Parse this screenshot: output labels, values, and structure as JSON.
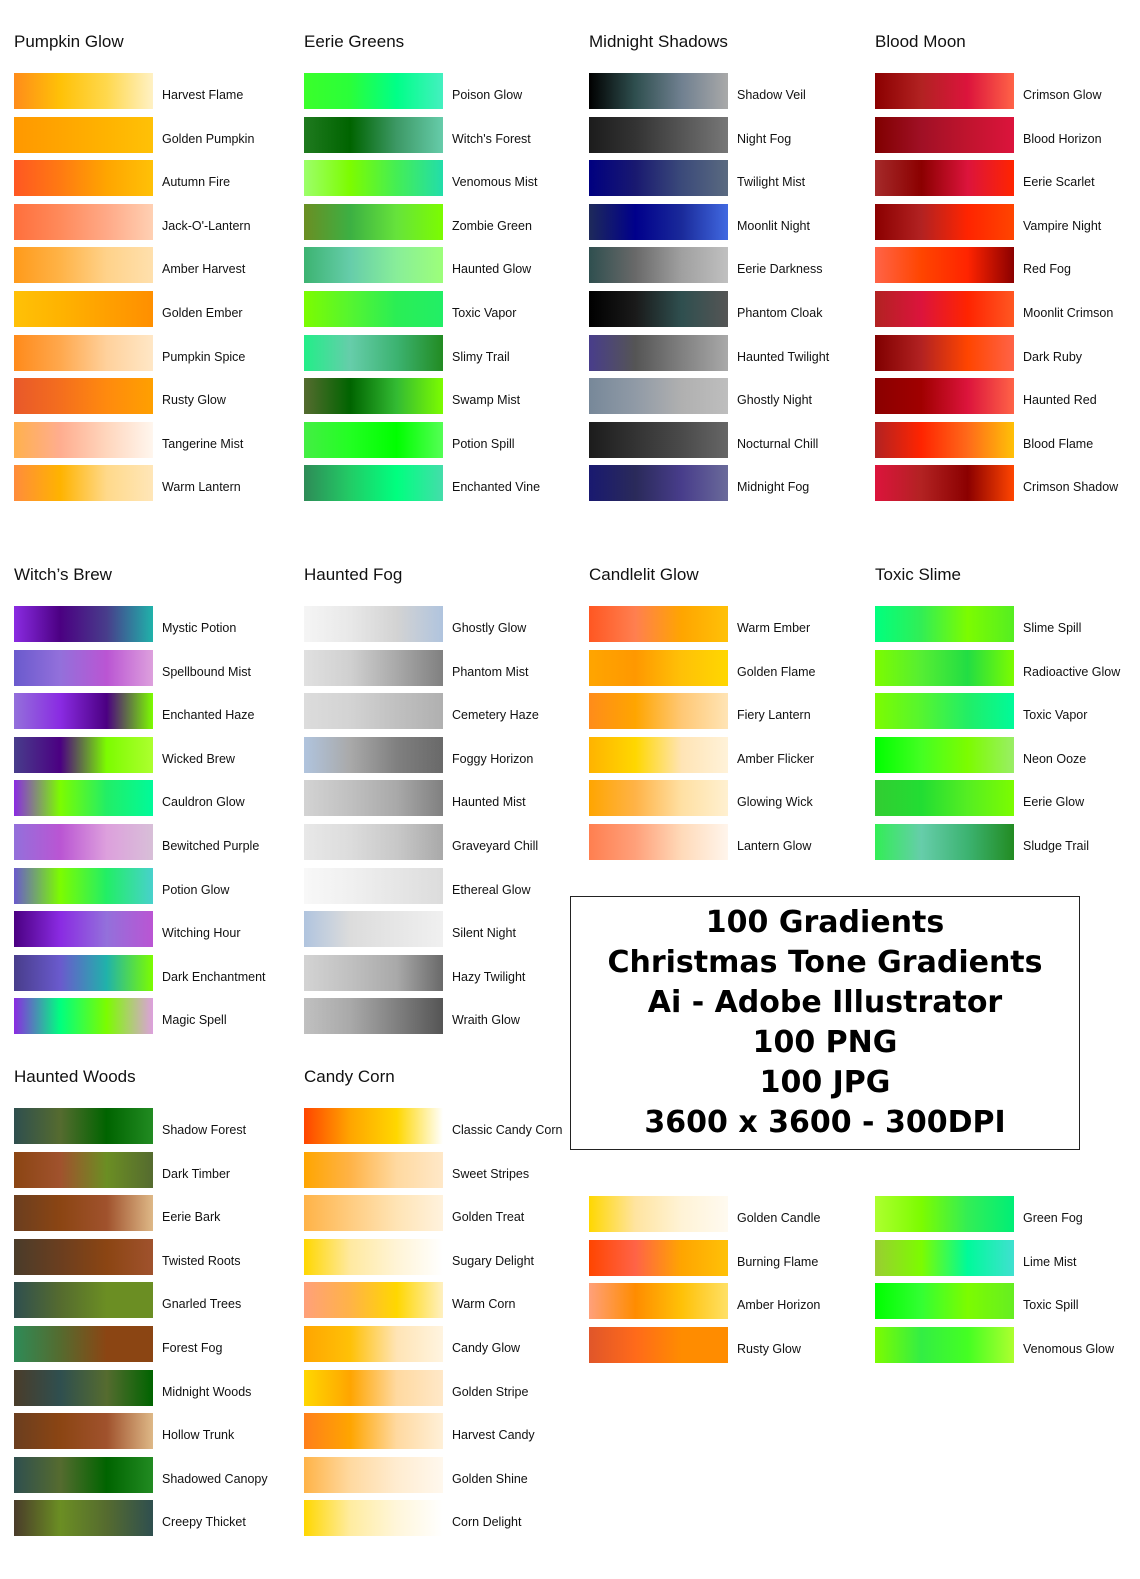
{
  "groups": [
    {
      "title": "Pumpkin Glow",
      "items": [
        {
          "label": "Harvest Flame",
          "colors": [
            "#ff8c1a",
            "#ffc107",
            "#ffd84d",
            "#fff1c4"
          ]
        },
        {
          "label": "Golden Pumpkin",
          "colors": [
            "#ff9800",
            "#ffa500",
            "#ffb300",
            "#ffc107"
          ]
        },
        {
          "label": "Autumn Fire",
          "colors": [
            "#ff5722",
            "#ff7a12",
            "#ffa500",
            "#ffc107"
          ]
        },
        {
          "label": "Jack-O'-Lantern",
          "colors": [
            "#ff6f3c",
            "#ff8a5b",
            "#ffa987",
            "#ffd0b3"
          ]
        },
        {
          "label": "Amber Harvest",
          "colors": [
            "#ff9a1a",
            "#ffb347",
            "#ffd28a",
            "#ffe0ad"
          ]
        },
        {
          "label": "Golden Ember",
          "colors": [
            "#ffc107",
            "#ffb300",
            "#ffa000",
            "#ff8f00"
          ]
        },
        {
          "label": "Pumpkin Spice",
          "colors": [
            "#ff8a1a",
            "#ffa84d",
            "#ffd19c",
            "#ffe7c6"
          ]
        },
        {
          "label": "Rusty Glow",
          "colors": [
            "#e8582a",
            "#f46e1e",
            "#ff8a0e",
            "#ffa000"
          ]
        },
        {
          "label": "Tangerine Mist",
          "colors": [
            "#ffb04d",
            "#ffad8f",
            "#ffd6bd",
            "#fff6ee"
          ]
        },
        {
          "label": "Warm Lantern",
          "colors": [
            "#ff8c3c",
            "#ffb300",
            "#ffd98a",
            "#ffe6b8"
          ]
        }
      ]
    },
    {
      "title": "Eerie Greens",
      "items": [
        {
          "label": "Poison Glow",
          "colors": [
            "#3aff2a",
            "#2aff3a",
            "#00ff88",
            "#44f0c0"
          ]
        },
        {
          "label": "Witch's Forest",
          "colors": [
            "#1f7a1f",
            "#006400",
            "#3d9966",
            "#66ccaa"
          ]
        },
        {
          "label": "Venomous Mist",
          "colors": [
            "#9dff6a",
            "#7cfc00",
            "#44ee55",
            "#22ddaa"
          ]
        },
        {
          "label": "Zombie Green",
          "colors": [
            "#6b8e23",
            "#3cb043",
            "#66e33b",
            "#7cfc00"
          ]
        },
        {
          "label": "Haunted Glow",
          "colors": [
            "#3cb371",
            "#66cdaa",
            "#88ee99",
            "#9dff7a"
          ]
        },
        {
          "label": "Toxic Vapor",
          "colors": [
            "#7cfc00",
            "#55f530",
            "#2aee55",
            "#22ee66"
          ]
        },
        {
          "label": "Slimy Trail",
          "colors": [
            "#22ee88",
            "#66cdaa",
            "#3cb371",
            "#228b22"
          ]
        },
        {
          "label": "Swamp Mist",
          "colors": [
            "#556b2f",
            "#006400",
            "#33bb33",
            "#7cfc00"
          ]
        },
        {
          "label": "Potion Spill",
          "colors": [
            "#44ee44",
            "#22ff22",
            "#00ff00",
            "#55ff55"
          ]
        },
        {
          "label": "Enchanted Vine",
          "colors": [
            "#2e8b57",
            "#22cc66",
            "#00ff7f",
            "#44ddaa"
          ]
        }
      ]
    },
    {
      "title": "Midnight Shadows",
      "items": [
        {
          "label": "Shadow Veil",
          "colors": [
            "#000000",
            "#2f4f4f",
            "#708090",
            "#a9a9a9"
          ]
        },
        {
          "label": "Night Fog",
          "colors": [
            "#1c1c1c",
            "#333333",
            "#555555",
            "#777777"
          ]
        },
        {
          "label": "Twilight Mist",
          "colors": [
            "#000080",
            "#191970",
            "#3b4a7a",
            "#5a6a80"
          ]
        },
        {
          "label": "Moonlit Night",
          "colors": [
            "#1e2a5a",
            "#00008b",
            "#1a2a9a",
            "#4169e1"
          ]
        },
        {
          "label": "Eerie Darkness",
          "colors": [
            "#2f4f4f",
            "#696969",
            "#a0a0a0",
            "#c0c0c0"
          ]
        },
        {
          "label": "Phantom Cloak",
          "colors": [
            "#000000",
            "#1a1a1a",
            "#2f4f4f",
            "#555555"
          ]
        },
        {
          "label": "Haunted Twilight",
          "colors": [
            "#483d8b",
            "#555555",
            "#808080",
            "#a9a9a9"
          ]
        },
        {
          "label": "Ghostly Night",
          "colors": [
            "#778899",
            "#909aa6",
            "#b0b0b0",
            "#bebebe"
          ]
        },
        {
          "label": "Nocturnal Chill",
          "colors": [
            "#1c1c1c",
            "#333333",
            "#4a4a4a",
            "#666666"
          ]
        },
        {
          "label": "Midnight Fog",
          "colors": [
            "#191970",
            "#2a2a5a",
            "#483d8b",
            "#6a6a9a"
          ]
        }
      ]
    },
    {
      "title": "Blood Moon",
      "items": [
        {
          "label": "Crimson Glow",
          "colors": [
            "#8b0000",
            "#b22222",
            "#dc143c",
            "#ff6347"
          ]
        },
        {
          "label": "Blood Horizon",
          "colors": [
            "#800000",
            "#a01025",
            "#c0142e",
            "#dc143c"
          ]
        },
        {
          "label": "Eerie Scarlet",
          "colors": [
            "#a52a2a",
            "#8b0000",
            "#dc143c",
            "#ff2400"
          ]
        },
        {
          "label": "Vampire Night",
          "colors": [
            "#8b0000",
            "#b22222",
            "#ff2400",
            "#ff4500"
          ]
        },
        {
          "label": "Red Fog",
          "colors": [
            "#ff6347",
            "#ff4500",
            "#ff2400",
            "#8b0000"
          ]
        },
        {
          "label": "Moonlit Crimson",
          "colors": [
            "#b22222",
            "#dc143c",
            "#ff2400",
            "#ff5722"
          ]
        },
        {
          "label": "Dark Ruby",
          "colors": [
            "#800000",
            "#b22222",
            "#ff4500",
            "#ff6347"
          ]
        },
        {
          "label": "Haunted Red",
          "colors": [
            "#8b0000",
            "#a00000",
            "#dc143c",
            "#ff6347"
          ]
        },
        {
          "label": "Blood Flame",
          "colors": [
            "#b22222",
            "#ff2400",
            "#ff6a1a",
            "#ffc107"
          ]
        },
        {
          "label": "Crimson Shadow",
          "colors": [
            "#dc143c",
            "#b22222",
            "#8b0000",
            "#ff4500"
          ]
        }
      ]
    },
    {
      "title": "Witch’s Brew",
      "items": [
        {
          "label": "Mystic Potion",
          "colors": [
            "#8a2be2",
            "#4b0082",
            "#483d8b",
            "#20b2aa"
          ]
        },
        {
          "label": "Spellbound Mist",
          "colors": [
            "#6a5acd",
            "#9370db",
            "#ba55d3",
            "#dda0dd"
          ]
        },
        {
          "label": "Enchanted Haze",
          "colors": [
            "#9370db",
            "#8a2be2",
            "#4b0082",
            "#7cfc00"
          ]
        },
        {
          "label": "Wicked Brew",
          "colors": [
            "#483d8b",
            "#4b0082",
            "#7cfc00",
            "#adff2f"
          ]
        },
        {
          "label": "Cauldron Glow",
          "colors": [
            "#8a2be2",
            "#7cfc00",
            "#22ee66",
            "#00fa9a"
          ]
        },
        {
          "label": "Bewitched Purple",
          "colors": [
            "#9370db",
            "#ba55d3",
            "#dda0dd",
            "#d8bfd8"
          ]
        },
        {
          "label": "Potion Glow",
          "colors": [
            "#6a5acd",
            "#7cfc00",
            "#22ee66",
            "#48d1cc"
          ]
        },
        {
          "label": "Witching Hour",
          "colors": [
            "#4b0082",
            "#8a2be2",
            "#9370db",
            "#ba55d3"
          ]
        },
        {
          "label": "Dark Enchantment",
          "colors": [
            "#483d8b",
            "#6a5acd",
            "#20b2aa",
            "#7cfc00"
          ]
        },
        {
          "label": "Magic Spell",
          "colors": [
            "#8a2be2",
            "#00ff7f",
            "#7cfc00",
            "#dda0dd"
          ]
        }
      ]
    },
    {
      "title": "Haunted Fog",
      "items": [
        {
          "label": "Ghostly Glow",
          "colors": [
            "#f5f5f5",
            "#e8e8e8",
            "#d3d3d3",
            "#b0c4de"
          ]
        },
        {
          "label": "Phantom Mist",
          "colors": [
            "#e0e0e0",
            "#d0d0d0",
            "#a9a9a9",
            "#808080"
          ]
        },
        {
          "label": "Cemetery Haze",
          "colors": [
            "#dcdcdc",
            "#d3d3d3",
            "#c0c0c0",
            "#b0b0b0"
          ]
        },
        {
          "label": "Foggy Horizon",
          "colors": [
            "#b0c4de",
            "#a9a9a9",
            "#808080",
            "#696969"
          ]
        },
        {
          "label": "Haunted Mist",
          "colors": [
            "#d3d3d3",
            "#c0c0c0",
            "#a9a9a9",
            "#808080"
          ]
        },
        {
          "label": "Graveyard Chill",
          "colors": [
            "#e8e8e8",
            "#dcdcdc",
            "#c8c8c8",
            "#a9a9a9"
          ]
        },
        {
          "label": "Ethereal Glow",
          "colors": [
            "#f8f8f8",
            "#f0f0f0",
            "#e6e6e6",
            "#dcdcdc"
          ]
        },
        {
          "label": "Silent Night",
          "colors": [
            "#b0c4de",
            "#dcdcdc",
            "#e6e6e6",
            "#f0f0f0"
          ]
        },
        {
          "label": "Hazy Twilight",
          "colors": [
            "#d3d3d3",
            "#c0c0c0",
            "#a9a9a9",
            "#696969"
          ]
        },
        {
          "label": "Wraith Glow",
          "colors": [
            "#c0c0c0",
            "#a9a9a9",
            "#808080",
            "#555555"
          ]
        }
      ]
    },
    {
      "title": "Candlelit Glow",
      "items": [
        {
          "label": "Warm Ember",
          "colors": [
            "#ff5722",
            "#ff7f50",
            "#ffa500",
            "#ffc107"
          ]
        },
        {
          "label": "Golden Flame",
          "colors": [
            "#ffa500",
            "#ff9800",
            "#ffc107",
            "#ffd700"
          ]
        },
        {
          "label": "Fiery Lantern",
          "colors": [
            "#ff8c1a",
            "#ffa500",
            "#ffc875",
            "#ffe4b5"
          ]
        },
        {
          "label": "Amber Flicker",
          "colors": [
            "#ffb300",
            "#ffd700",
            "#ffe4b5",
            "#fff2d9"
          ]
        },
        {
          "label": "Glowing Wick",
          "colors": [
            "#ffa500",
            "#ffb347",
            "#ffe0a3",
            "#fff0d0"
          ]
        },
        {
          "label": "Lantern Glow",
          "colors": [
            "#ff7f50",
            "#ffa07a",
            "#ffdab9",
            "#fff5ec"
          ]
        },
        {
          "label": "Golden Candle",
          "colors": [
            "#ffd700",
            "#ffe4a0",
            "#fff3d6",
            "#fffaf0"
          ]
        },
        {
          "label": "Burning Flame",
          "colors": [
            "#ff4500",
            "#ff6347",
            "#ffa500",
            "#ffc107"
          ]
        },
        {
          "label": "Amber Horizon",
          "colors": [
            "#ffa07a",
            "#ff8c00",
            "#ffc107",
            "#ffe066"
          ]
        },
        {
          "label": "Rusty Glow",
          "colors": [
            "#e0562a",
            "#ff6a1a",
            "#ff8c00",
            "#ff8c00"
          ]
        }
      ]
    },
    {
      "title": "Toxic Slime",
      "items": [
        {
          "label": "Slime Spill",
          "colors": [
            "#00ff7f",
            "#32ee55",
            "#7cfc00",
            "#55ee22"
          ]
        },
        {
          "label": "Radioactive Glow",
          "colors": [
            "#7cfc00",
            "#55ee33",
            "#22dd44",
            "#7cfc00"
          ]
        },
        {
          "label": "Toxic Vapor",
          "colors": [
            "#7cfc00",
            "#55f530",
            "#22ee66",
            "#00fa9a"
          ]
        },
        {
          "label": "Neon Ooze",
          "colors": [
            "#00ff00",
            "#44ff22",
            "#7cfc00",
            "#9aee66"
          ]
        },
        {
          "label": "Eerie Glow",
          "colors": [
            "#32cd32",
            "#22dd33",
            "#55ee22",
            "#7cfc00"
          ]
        },
        {
          "label": "Sludge Trail",
          "colors": [
            "#32ee55",
            "#66cdaa",
            "#3cb371",
            "#228b22"
          ]
        },
        {
          "label": "Green Fog",
          "colors": [
            "#adff2f",
            "#7cfc00",
            "#33ee55",
            "#00ee77"
          ]
        },
        {
          "label": "Lime Mist",
          "colors": [
            "#9acd32",
            "#7cfc00",
            "#00fa9a",
            "#40e0d0"
          ]
        },
        {
          "label": "Toxic Spill",
          "colors": [
            "#00ff00",
            "#33ff33",
            "#7cfc00",
            "#66ee22"
          ]
        },
        {
          "label": "Venomous Glow",
          "colors": [
            "#7cfc00",
            "#33ee44",
            "#44ff22",
            "#adff2f"
          ]
        }
      ]
    },
    {
      "title": "Haunted Woods",
      "items": [
        {
          "label": "Shadow Forest",
          "colors": [
            "#2f4f4f",
            "#556b2f",
            "#006400",
            "#228b22"
          ]
        },
        {
          "label": "Dark Timber",
          "colors": [
            "#8b4513",
            "#a0522d",
            "#6b8e23",
            "#556b2f"
          ]
        },
        {
          "label": "Eerie Bark",
          "colors": [
            "#6b3e1f",
            "#8b4513",
            "#a0522d",
            "#deb887"
          ]
        },
        {
          "label": "Twisted Roots",
          "colors": [
            "#4a3c2a",
            "#6b3e1f",
            "#8b4513",
            "#a0522d"
          ]
        },
        {
          "label": "Gnarled Trees",
          "colors": [
            "#2f4f4f",
            "#556b2f",
            "#6b8e23",
            "#6b8e23"
          ]
        },
        {
          "label": "Forest Fog",
          "colors": [
            "#2e8b57",
            "#556b2f",
            "#8b4513",
            "#8b4513"
          ]
        },
        {
          "label": "Midnight Woods",
          "colors": [
            "#4a3c2a",
            "#2f4f4f",
            "#556b2f",
            "#006400"
          ]
        },
        {
          "label": "Hollow Trunk",
          "colors": [
            "#6b3e1f",
            "#8b4513",
            "#a0522d",
            "#deb887"
          ]
        },
        {
          "label": "Shadowed Canopy",
          "colors": [
            "#2f4f4f",
            "#556b2f",
            "#006400",
            "#228b22"
          ]
        },
        {
          "label": "Creepy Thicket",
          "colors": [
            "#4a3c2a",
            "#6b8e23",
            "#556b2f",
            "#2f4f4f"
          ]
        }
      ]
    },
    {
      "title": "Candy Corn",
      "items": [
        {
          "label": "Classic Candy Corn",
          "colors": [
            "#ff4500",
            "#ffa500",
            "#ffd700",
            "#ffffff"
          ]
        },
        {
          "label": "Sweet Stripes",
          "colors": [
            "#ffa500",
            "#ffb347",
            "#ffd9a0",
            "#ffe8c8"
          ]
        },
        {
          "label": "Golden Treat",
          "colors": [
            "#ffb347",
            "#ffcc80",
            "#ffe4b5",
            "#fff2dd"
          ]
        },
        {
          "label": "Sugary Delight",
          "colors": [
            "#ffd700",
            "#ffe9a0",
            "#fff4d6",
            "#ffffff"
          ]
        },
        {
          "label": "Warm Corn",
          "colors": [
            "#ffa07a",
            "#ffb347",
            "#ffd700",
            "#fff0c0"
          ]
        },
        {
          "label": "Candy Glow",
          "colors": [
            "#ffa500",
            "#ffc107",
            "#ffe4b5",
            "#fff4e0"
          ]
        },
        {
          "label": "Golden Stripe",
          "colors": [
            "#ffd700",
            "#ffa500",
            "#ffd9a0",
            "#ffe8c8"
          ]
        },
        {
          "label": "Harvest Candy",
          "colors": [
            "#ff7f1a",
            "#ffa500",
            "#ffd9a0",
            "#fff0d8"
          ]
        },
        {
          "label": "Golden Shine",
          "colors": [
            "#ffb347",
            "#ffd9a0",
            "#ffecd0",
            "#fff8ee"
          ]
        },
        {
          "label": "Corn Delight",
          "colors": [
            "#ffd700",
            "#ffeca0",
            "#fff6da",
            "#ffffff"
          ]
        }
      ]
    }
  ],
  "info_box": {
    "lines": [
      "100 Gradients",
      "Christmas Tone Gradients",
      "Ai - Adobe Illustrator",
      "100 PNG",
      "100 JPG",
      "3600 x 3600 - 300DPI"
    ]
  }
}
